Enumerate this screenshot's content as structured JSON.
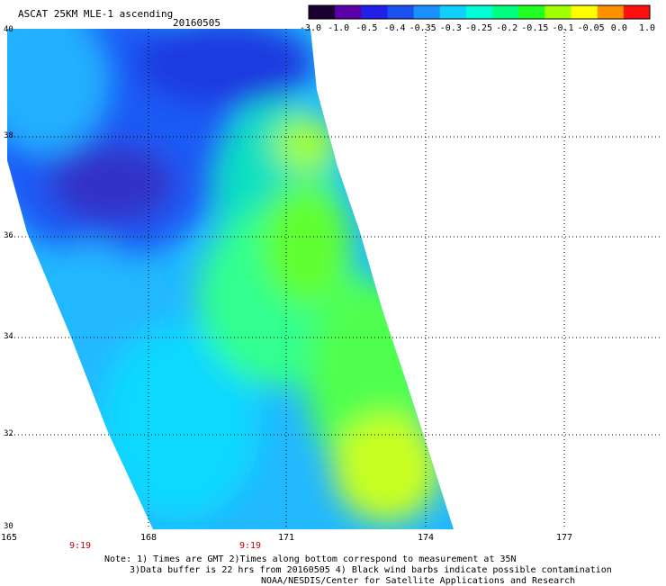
{
  "title": "ASCAT 25KM MLE-1 ascending",
  "date": "20160505",
  "colorbar": {
    "labels": [
      "-3.0",
      "-1.0",
      "-0.5",
      "-0.4",
      "-0.35",
      "-0.3",
      "-0.25",
      "-0.2",
      "-0.15",
      "-0.1",
      "-0.05",
      "0.0",
      "1.0"
    ],
    "colors": [
      "#1a0030",
      "#5a00a8",
      "#2020e8",
      "#1a50f0",
      "#1a90ff",
      "#10d0ff",
      "#00ffd8",
      "#00ff80",
      "#20ff20",
      "#a0ff00",
      "#ffff00",
      "#ff9000",
      "#ff1010"
    ]
  },
  "axes": {
    "lat_labels": [
      "40",
      "38",
      "36",
      "34",
      "32",
      "30"
    ],
    "lon_labels": [
      "165",
      "168",
      "171",
      "174",
      "177"
    ],
    "lat_range": [
      30,
      40
    ],
    "lon_range": [
      165,
      179.3
    ]
  },
  "times": [
    "9:19",
    "9:19"
  ],
  "notes": {
    "line1": "Note: 1) Times are GMT 2)Times along bottom correspond to measurement at 35N",
    "line2": "3)Data buffer is 22 hrs from 20160505 4) Black wind barbs indicate possible contamination",
    "line3": "NOAA/NESDIS/Center for Satellite Applications and Research"
  }
}
